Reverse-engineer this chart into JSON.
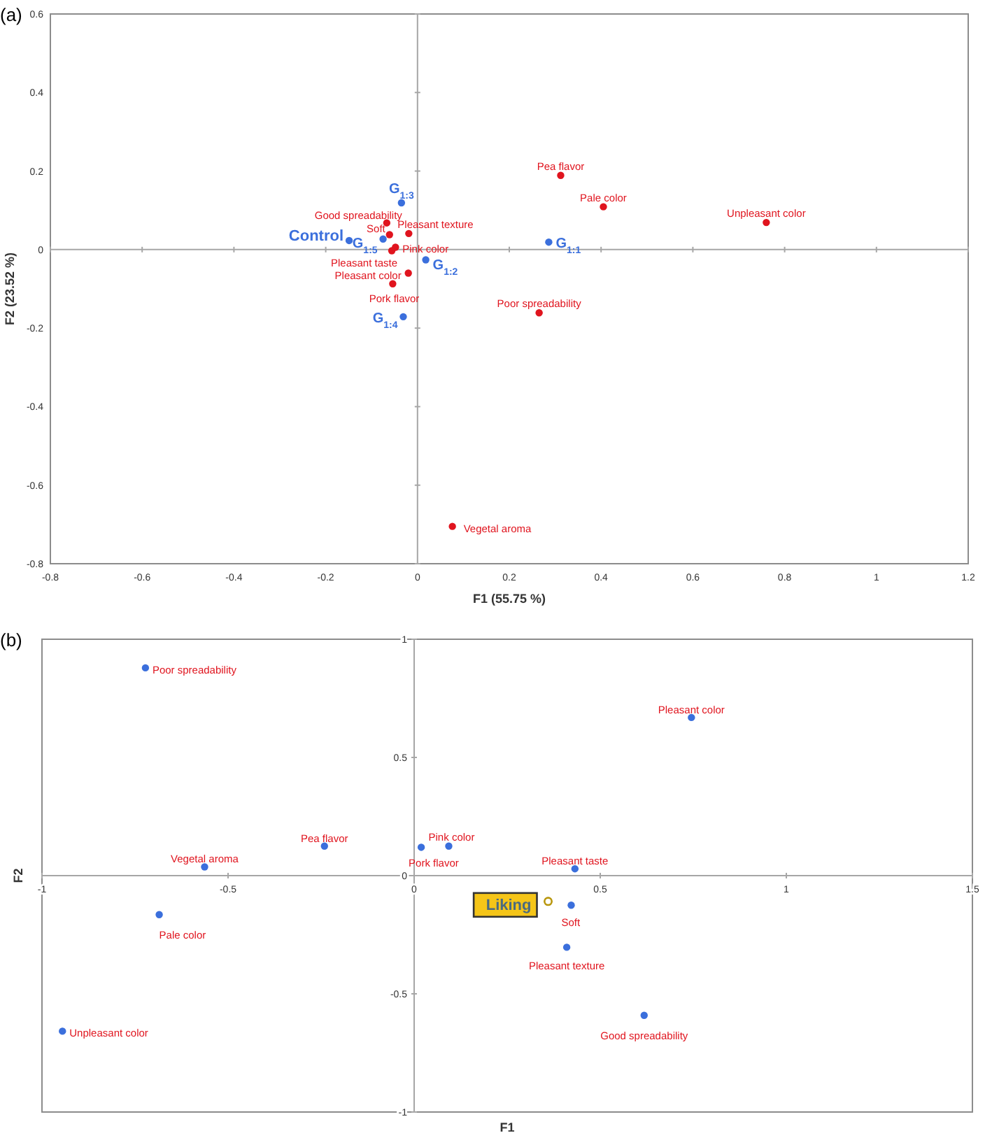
{
  "chart_data": [
    {
      "type": "scatter",
      "title": "(a)",
      "xlabel": "F1 (55.75 %)",
      "ylabel": "F2 (23.52 %)",
      "xlim": [
        -0.8,
        1.2
      ],
      "ylim": [
        -0.8,
        0.6
      ],
      "xticks": [
        -0.8,
        -0.6,
        -0.4,
        -0.2,
        0,
        0.2,
        0.4,
        0.6,
        0.8,
        1,
        1.2
      ],
      "yticks": [
        -0.8,
        -0.6,
        -0.4,
        -0.2,
        0,
        0.2,
        0.4,
        0.6
      ],
      "marker": "circle",
      "series": [
        {
          "color": "#3b6fdc",
          "x": [
            0.286,
            -0.035,
            -0.149,
            -0.075,
            0.018,
            -0.031
          ],
          "values": [
            0.019,
            0.119,
            0.023,
            0.027,
            -0.026,
            -0.171
          ]
        },
        {
          "color": "#e0141e",
          "x": [
            0.312,
            0.405,
            0.76,
            0.265,
            -0.067,
            -0.061,
            -0.019,
            -0.048,
            -0.056,
            -0.02,
            -0.054,
            0.076
          ],
          "values": [
            0.189,
            0.109,
            0.069,
            -0.161,
            0.068,
            0.038,
            0.041,
            0.006,
            -0.003,
            -0.06,
            -0.087,
            -0.705
          ]
        }
      ],
      "annotations": [
        {
          "text": "Pea flavor",
          "x": 0.312,
          "y": 0.189
        },
        {
          "text": "Pale color",
          "x": 0.405,
          "y": 0.109
        },
        {
          "text": "Unpleasant color",
          "x": 0.76,
          "y": 0.069
        },
        {
          "text": "G$_{1:1}$",
          "x": 0.286,
          "y": 0.019
        },
        {
          "text": "Poor spreadability",
          "x": 0.265,
          "y": -0.161
        },
        {
          "text": "G$_{1:3}$",
          "x": -0.035,
          "y": 0.119
        },
        {
          "text": "Good spreadability",
          "x": -0.067,
          "y": 0.068
        },
        {
          "text": "Soft",
          "x": -0.061,
          "y": 0.038
        },
        {
          "text": "Pleasant texture",
          "x": -0.019,
          "y": 0.041
        },
        {
          "text": "Control",
          "x": -0.149,
          "y": 0.023
        },
        {
          "text": "G$_{1:5}$",
          "x": -0.075,
          "y": 0.027
        },
        {
          "text": "Pink color",
          "x": -0.048,
          "y": 0.006
        },
        {
          "text": "Pleasant taste",
          "x": -0.056,
          "y": -0.003
        },
        {
          "text": "G$_{1:2}$",
          "x": 0.018,
          "y": -0.026
        },
        {
          "text": "Pleasant color",
          "x": -0.02,
          "y": -0.06
        },
        {
          "text": "Pork flavor",
          "x": -0.054,
          "y": -0.087
        },
        {
          "text": "G$_{1:4}$",
          "x": -0.031,
          "y": -0.171
        },
        {
          "text": "Vegetal aroma",
          "x": 0.076,
          "y": -0.705
        }
      ]
    },
    {
      "type": "scatter",
      "title": "(b)",
      "xlabel": "F1",
      "ylabel": "F2",
      "xlim": [
        -1,
        1.5
      ],
      "ylim": [
        -1,
        1
      ],
      "xticks": [
        -1,
        -0.5,
        0,
        0.5,
        1,
        1.5
      ],
      "yticks": [
        -1,
        -0.5,
        0,
        0.5,
        1
      ],
      "marker": "circle",
      "series": [
        {
          "color": "#3b6fdc",
          "x": [
            -0.722,
            0.745,
            -0.241,
            -0.563,
            0.093,
            0.019,
            0.432,
            0.422,
            0.41,
            0.618,
            -0.685,
            -0.945
          ],
          "values": [
            0.879,
            0.669,
            0.125,
            0.037,
            0.125,
            0.12,
            0.029,
            -0.125,
            -0.303,
            -0.591,
            -0.165,
            -0.658
          ]
        },
        {
          "color": "#b8960c",
          "x": [
            0.36
          ],
          "values": [
            -0.109
          ]
        }
      ],
      "annotations": [
        {
          "text": "Poor spreadability",
          "x": -0.722,
          "y": 0.879
        },
        {
          "text": "Pleasant color",
          "x": 0.745,
          "y": 0.669
        },
        {
          "text": "Pea flavor",
          "x": -0.241,
          "y": 0.125
        },
        {
          "text": "Vegetal aroma",
          "x": -0.563,
          "y": 0.037
        },
        {
          "text": "Pink color",
          "x": 0.093,
          "y": 0.125
        },
        {
          "text": "Pork flavor",
          "x": 0.019,
          "y": 0.12
        },
        {
          "text": "Pleasant taste",
          "x": 0.432,
          "y": 0.029
        },
        {
          "text": "Liking",
          "x": 0.36,
          "y": -0.109
        },
        {
          "text": "Soft",
          "x": 0.422,
          "y": -0.125
        },
        {
          "text": "Pleasant texture",
          "x": 0.41,
          "y": -0.303
        },
        {
          "text": "Good spreadability",
          "x": 0.618,
          "y": -0.591
        },
        {
          "text": "Pale color",
          "x": -0.685,
          "y": -0.165
        },
        {
          "text": "Unpleasant color",
          "x": -0.945,
          "y": -0.658
        }
      ]
    }
  ]
}
